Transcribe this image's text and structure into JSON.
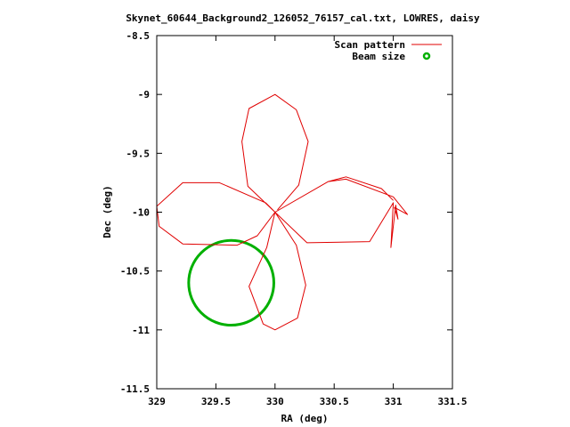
{
  "chart_data": {
    "type": "line",
    "title": "Skynet_60644_Background2_126052_76157_cal.txt, LOWRES, daisy",
    "xlabel": "RA (deg)",
    "ylabel": "Dec (deg)",
    "xlim": [
      329,
      331.5
    ],
    "ylim": [
      -11.5,
      -8.5
    ],
    "x_ticks": [
      329,
      329.5,
      330,
      330.5,
      331,
      331.5
    ],
    "x_tick_labels": [
      "329",
      "329.5",
      "330",
      "330.5",
      "331",
      "331.5"
    ],
    "y_ticks": [
      -8.5,
      -9,
      -9.5,
      -10,
      -10.5,
      -11,
      -11.5
    ],
    "y_tick_labels": [
      "-8.5",
      "-9",
      "-9.5",
      "-10",
      "-10.5",
      "-11",
      "-11.5"
    ],
    "grid": false,
    "legend_position": "top-right",
    "series": [
      {
        "name": "Scan pattern",
        "color": "#e00000",
        "style": "line",
        "points": [
          [
            331.0,
            -9.9
          ],
          [
            330.9,
            -9.8
          ],
          [
            330.6,
            -9.7
          ],
          [
            330.45,
            -9.74
          ],
          [
            330.0,
            -10.0
          ],
          [
            330.27,
            -10.26
          ],
          [
            330.8,
            -10.25
          ],
          [
            331.0,
            -9.92
          ],
          [
            330.98,
            -10.3
          ],
          [
            331.02,
            -9.94
          ],
          [
            331.04,
            -10.06
          ],
          [
            331.01,
            -9.96
          ],
          [
            331.12,
            -10.02
          ],
          [
            331.0,
            -9.87
          ],
          [
            330.6,
            -9.72
          ],
          [
            330.45,
            -9.74
          ],
          [
            330.0,
            -10.0
          ],
          [
            329.93,
            -10.3
          ],
          [
            329.78,
            -10.63
          ],
          [
            329.9,
            -10.95
          ],
          [
            330.0,
            -11.0
          ],
          [
            330.19,
            -10.9
          ],
          [
            330.26,
            -10.62
          ],
          [
            330.18,
            -10.28
          ],
          [
            330.0,
            -10.0
          ],
          [
            329.85,
            -10.2
          ],
          [
            329.68,
            -10.28
          ],
          [
            329.22,
            -10.27
          ],
          [
            329.02,
            -10.12
          ],
          [
            329.0,
            -9.95
          ],
          [
            329.22,
            -9.75
          ],
          [
            329.53,
            -9.75
          ],
          [
            329.92,
            -9.92
          ],
          [
            330.0,
            -10.0
          ],
          [
            329.77,
            -9.78
          ],
          [
            329.72,
            -9.4
          ],
          [
            329.78,
            -9.12
          ],
          [
            330.0,
            -9.0
          ],
          [
            330.18,
            -9.13
          ],
          [
            330.28,
            -9.4
          ],
          [
            330.2,
            -9.77
          ],
          [
            330.02,
            -9.98
          ]
        ]
      },
      {
        "name": "Beam size",
        "color": "#00b000",
        "style": "circle",
        "center": [
          329.63,
          -10.6
        ],
        "radius": 0.36
      }
    ]
  }
}
